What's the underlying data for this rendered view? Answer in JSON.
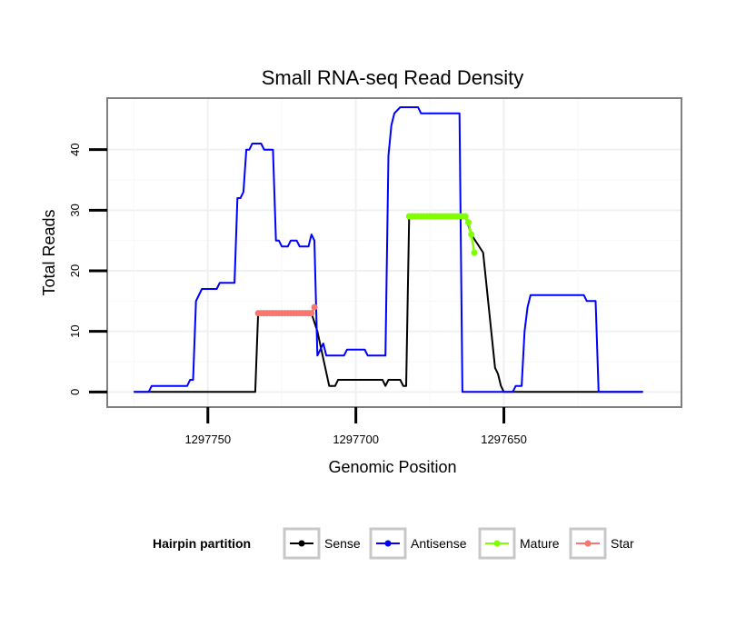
{
  "chart_data": {
    "type": "line",
    "title": "Small RNA-seq Read Density",
    "xlabel": "Genomic Position",
    "ylabel": "Total Reads",
    "x_reversed": true,
    "xlim": [
      1297784,
      1297590
    ],
    "ylim": [
      -2.5,
      48.5
    ],
    "x_ticks": [
      1297750,
      1297700,
      1297650
    ],
    "x_tick_labels": [
      "1297750",
      "1297700",
      "1297650"
    ],
    "y_ticks": [
      0,
      10,
      20,
      30,
      40
    ],
    "y_tick_labels": [
      "0",
      "10",
      "20",
      "30",
      "40"
    ],
    "grid": true,
    "legend_title": "Hairpin partition",
    "legend_position": "bottom",
    "series": [
      {
        "name": "Sense",
        "color": "#000000",
        "points": [
          [
            1297775,
            0
          ],
          [
            1297734,
            0
          ],
          [
            1297733,
            13
          ],
          [
            1297715,
            13
          ],
          [
            1297713,
            10
          ],
          [
            1297709,
            1
          ],
          [
            1297707,
            1
          ],
          [
            1297706,
            2
          ],
          [
            1297691,
            2
          ],
          [
            1297690,
            1
          ],
          [
            1297689,
            2
          ],
          [
            1297685,
            2
          ],
          [
            1297684,
            1
          ],
          [
            1297683,
            1
          ],
          [
            1297682,
            29
          ],
          [
            1297663,
            29
          ],
          [
            1297661,
            26
          ],
          [
            1297657,
            23
          ],
          [
            1297653,
            4
          ],
          [
            1297652,
            3
          ],
          [
            1297651,
            1
          ],
          [
            1297650,
            0
          ],
          [
            1297603,
            0
          ]
        ]
      },
      {
        "name": "Antisense",
        "color": "#0000ff",
        "points": [
          [
            1297775,
            0
          ],
          [
            1297770,
            0
          ],
          [
            1297769,
            1
          ],
          [
            1297757,
            1
          ],
          [
            1297756,
            2
          ],
          [
            1297755,
            2
          ],
          [
            1297754,
            15
          ],
          [
            1297752,
            17
          ],
          [
            1297747,
            17
          ],
          [
            1297746,
            18
          ],
          [
            1297741,
            18
          ],
          [
            1297740,
            32
          ],
          [
            1297739,
            32
          ],
          [
            1297738,
            33
          ],
          [
            1297737,
            40
          ],
          [
            1297736,
            40
          ],
          [
            1297735,
            41
          ],
          [
            1297732,
            41
          ],
          [
            1297731,
            40
          ],
          [
            1297728,
            40
          ],
          [
            1297727,
            25
          ],
          [
            1297726,
            25
          ],
          [
            1297725,
            24
          ],
          [
            1297723,
            24
          ],
          [
            1297722,
            25
          ],
          [
            1297720,
            25
          ],
          [
            1297719,
            24
          ],
          [
            1297716,
            24
          ],
          [
            1297715,
            26
          ],
          [
            1297714,
            25
          ],
          [
            1297713,
            6
          ],
          [
            1297711,
            8
          ],
          [
            1297710,
            6
          ],
          [
            1297704,
            6
          ],
          [
            1297703,
            7
          ],
          [
            1297697,
            7
          ],
          [
            1297696,
            6
          ],
          [
            1297690,
            6
          ],
          [
            1297689,
            39
          ],
          [
            1297688,
            44
          ],
          [
            1297687,
            46
          ],
          [
            1297685,
            47
          ],
          [
            1297679,
            47
          ],
          [
            1297678,
            46
          ],
          [
            1297665,
            46
          ],
          [
            1297664,
            0
          ],
          [
            1297647,
            0
          ],
          [
            1297646,
            1
          ],
          [
            1297644,
            1
          ],
          [
            1297643,
            10
          ],
          [
            1297642,
            14
          ],
          [
            1297641,
            16
          ],
          [
            1297623,
            16
          ],
          [
            1297622,
            15
          ],
          [
            1297619,
            15
          ],
          [
            1297618,
            0
          ],
          [
            1297603,
            0
          ]
        ]
      },
      {
        "name": "Mature",
        "color": "#80ff00",
        "marker_x_range": [
          1297682,
          1297663
        ],
        "points": [
          [
            1297682,
            29
          ],
          [
            1297663,
            29
          ],
          [
            1297662,
            28
          ],
          [
            1297661,
            26
          ],
          [
            1297660,
            23
          ]
        ]
      },
      {
        "name": "Star",
        "color": "#f8766d",
        "marker_x_range": [
          1297733,
          1297715
        ],
        "points": [
          [
            1297733,
            13
          ],
          [
            1297715,
            13
          ],
          [
            1297714,
            14
          ]
        ]
      }
    ]
  }
}
